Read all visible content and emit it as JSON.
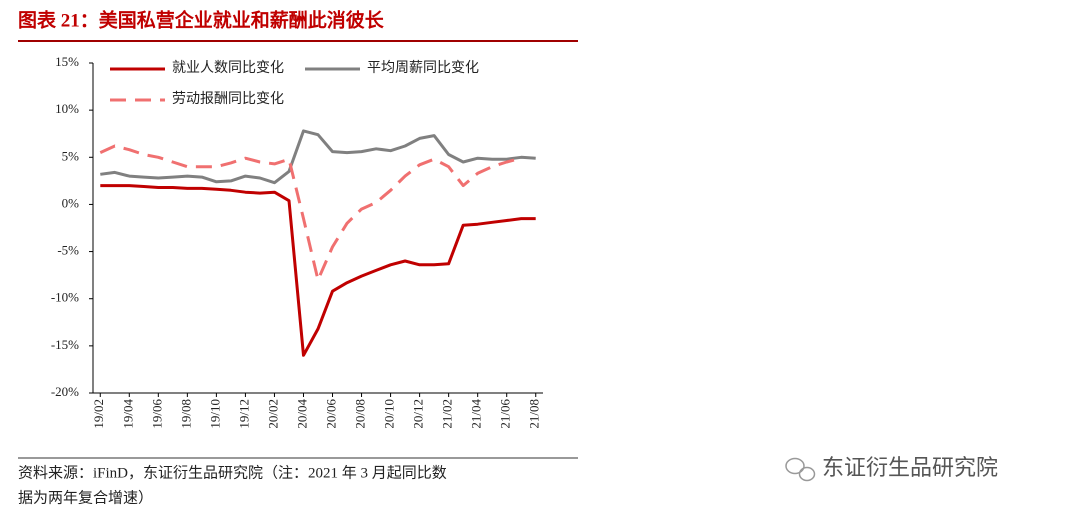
{
  "chart_data": {
    "type": "line",
    "title": "图表 21：美国私营企业就业和薪酬此消彼长",
    "categories": [
      "19/02",
      null,
      "19/04",
      null,
      "19/06",
      null,
      "19/08",
      null,
      "19/10",
      null,
      "19/12",
      null,
      "20/02",
      null,
      "20/04",
      null,
      "20/06",
      null,
      "20/08",
      null,
      "20/10",
      null,
      "20/12",
      null,
      "21/02",
      null,
      "21/04",
      null,
      "21/06",
      null,
      "21/08"
    ],
    "series": [
      {
        "name": "就业人数同比变化",
        "color": "#c00000",
        "linestyle": "solid",
        "values": [
          2.0,
          2.0,
          2.0,
          1.9,
          1.8,
          1.8,
          1.7,
          1.7,
          1.6,
          1.5,
          1.3,
          1.2,
          1.3,
          0.4,
          -16.0,
          -13.2,
          -9.2,
          -8.3,
          -7.6,
          -7.0,
          -6.4,
          -6.0,
          -6.4,
          -6.4,
          -6.3,
          -2.2,
          -2.1,
          -1.9,
          -1.7,
          -1.5,
          -1.5
        ]
      },
      {
        "name": "平均周薪同比变化",
        "color": "#808080",
        "linestyle": "solid",
        "values": [
          3.2,
          3.4,
          3.0,
          2.9,
          2.8,
          2.9,
          3.0,
          2.9,
          2.4,
          2.5,
          3.0,
          2.8,
          2.3,
          3.5,
          7.8,
          7.4,
          5.6,
          5.5,
          5.6,
          5.9,
          5.7,
          6.2,
          7.0,
          7.3,
          5.3,
          4.5,
          4.9,
          4.8,
          4.8,
          5.0,
          4.9
        ]
      },
      {
        "name": "劳动报酬同比变化",
        "color": "#f07070",
        "linestyle": "dashed",
        "values": [
          5.5,
          6.2,
          5.8,
          5.3,
          5.0,
          4.5,
          4.0,
          4.0,
          4.0,
          4.4,
          4.9,
          4.5,
          4.3,
          4.8,
          -1.5,
          -8.0,
          -4.5,
          -2.0,
          -0.5,
          0.2,
          1.5,
          3.0,
          4.2,
          4.8,
          4.0,
          2.0,
          3.3,
          4.0,
          4.5,
          4.9,
          null
        ]
      }
    ],
    "ylim": [
      -20,
      15
    ],
    "yticks": [
      {
        "value": -20,
        "label": "-20%"
      },
      {
        "value": -15,
        "label": "-15%"
      },
      {
        "value": -10,
        "label": "-10%"
      },
      {
        "value": -5,
        "label": "-5%"
      },
      {
        "value": 0,
        "label": "0%"
      },
      {
        "value": 5,
        "label": "5%"
      },
      {
        "value": 10,
        "label": "10%"
      },
      {
        "value": 15,
        "label": "15%"
      }
    ],
    "grid": false,
    "legend": "upper left"
  },
  "source": [
    "资料来源：iFinD，东证衍生品研究院（注：2021 年 3 月起同比数",
    "据为两年复合增速）"
  ],
  "watermark": "东证衍生品研究院"
}
